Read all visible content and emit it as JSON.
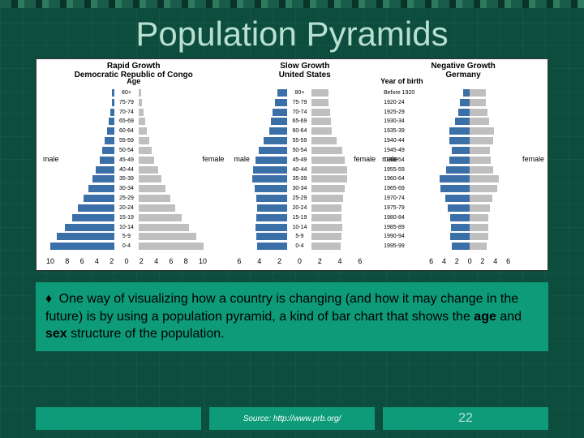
{
  "slide": {
    "title": "Population Pyramids",
    "background": "#0d4d3d",
    "grid_color": "rgba(255,255,255,0.04)"
  },
  "chart": {
    "type": "population_pyramid_triple",
    "background": "#ffffff",
    "male_color": "#3b6fa8",
    "female_color": "#bfbfbf",
    "age_title": "Age",
    "yob_title": "Year of birth",
    "male_label": "male",
    "female_label": "female",
    "panels": [
      {
        "growth_label": "Rapid Growth",
        "country": "Democratic Republic of Congo",
        "age_labels": [
          "80+",
          "75-79",
          "70-74",
          "65-69",
          "60-64",
          "55-59",
          "50-54",
          "45-49",
          "40-44",
          "35-39",
          "30-34",
          "25-29",
          "20-24",
          "15-19",
          "10-14",
          "5-9",
          "0-4"
        ],
        "male": [
          0.3,
          0.4,
          0.6,
          0.8,
          1.1,
          1.4,
          1.8,
          2.2,
          2.7,
          3.2,
          3.8,
          4.5,
          5.3,
          6.2,
          7.3,
          8.4,
          9.4
        ],
        "female": [
          0.3,
          0.5,
          0.7,
          0.9,
          1.2,
          1.5,
          1.9,
          2.3,
          2.8,
          3.3,
          3.9,
          4.6,
          5.4,
          6.3,
          7.4,
          8.5,
          9.5
        ],
        "xticks": [
          "10",
          "8",
          "6",
          "4",
          "2",
          "0",
          "2",
          "4",
          "6",
          "8",
          "10"
        ],
        "xmax": 10
      },
      {
        "growth_label": "Slow Growth",
        "country": "United States",
        "age_labels": [
          "80+",
          "75-79",
          "70-74",
          "65-69",
          "60-64",
          "55-59",
          "50-54",
          "45-49",
          "40-44",
          "35-39",
          "30-34",
          "25-29",
          "20-24",
          "15-19",
          "10-14",
          "5-9",
          "0-4"
        ],
        "male": [
          1.2,
          1.5,
          1.8,
          2.0,
          2.2,
          2.8,
          3.4,
          3.8,
          4.1,
          4.2,
          3.9,
          3.7,
          3.6,
          3.7,
          3.8,
          3.7,
          3.6
        ],
        "female": [
          2.0,
          2.0,
          2.2,
          2.3,
          2.4,
          3.0,
          3.6,
          3.9,
          4.2,
          4.2,
          3.9,
          3.7,
          3.5,
          3.5,
          3.6,
          3.5,
          3.4
        ],
        "xticks": [
          "6",
          "4",
          "2",
          "0",
          "2",
          "4",
          "6"
        ],
        "xmax": 6
      },
      {
        "growth_label": "Negative Growth",
        "country": "Germany",
        "age_labels": [
          "Before 1920",
          "1920-24",
          "1925-29",
          "1930-34",
          "1935-39",
          "1940-44",
          "1945-49",
          "1950-54",
          "1955-59",
          "1960-64",
          "1965-69",
          "1970-74",
          "1975-79",
          "1980-84",
          "1985-89",
          "1990-94",
          "1995-99"
        ],
        "male": [
          1.0,
          1.4,
          1.7,
          2.2,
          3.0,
          3.0,
          2.6,
          3.0,
          3.5,
          4.4,
          4.3,
          3.6,
          3.2,
          2.9,
          2.8,
          2.9,
          2.6
        ],
        "female": [
          2.4,
          2.4,
          2.6,
          2.9,
          3.6,
          3.5,
          3.0,
          3.1,
          3.5,
          4.3,
          4.1,
          3.4,
          3.0,
          2.7,
          2.7,
          2.7,
          2.5
        ],
        "xticks": [
          "6",
          "4",
          "2",
          "0",
          "2",
          "4",
          "6"
        ],
        "xmax": 6
      }
    ],
    "axis_fontsize": 9,
    "label_fontsize": 7
  },
  "caption": {
    "bullet": "♦",
    "text_pre": "One way of visualizing how a country is changing (and how it may change in the future) is by using a population pyramid, a kind of bar chart that shows the ",
    "bold1": "age",
    "mid": " and ",
    "bold2": "sex",
    "text_post": " structure of the population.",
    "background": "#0d9b7a",
    "fontsize": 16
  },
  "footer": {
    "source": "Source: http://www.prb.org/",
    "page_number": "22",
    "background": "#0d9b7a"
  }
}
